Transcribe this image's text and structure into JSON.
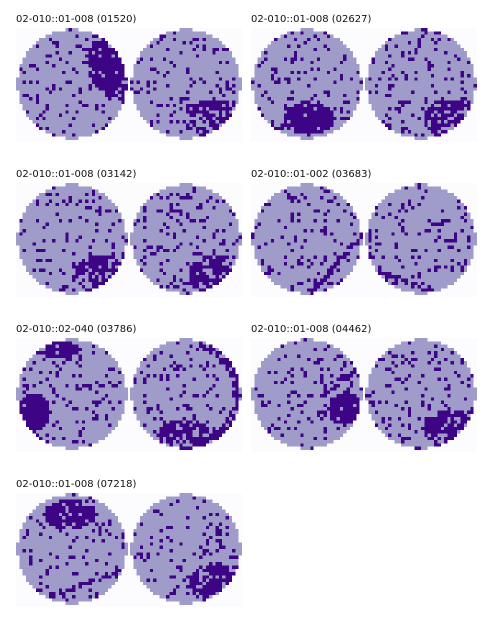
{
  "colors": {
    "die_pass": "#a09cc9",
    "die_fail": "#3d0585",
    "background": "#fcfcfe"
  },
  "panels": [
    {
      "title": "02-010::01-008 (01520)",
      "left_pattern": "edge-ring-cluster",
      "right_pattern": "bottom-right-cluster"
    },
    {
      "title": "02-010::01-008 (02627)",
      "left_pattern": "bottom-cluster",
      "right_pattern": "bottom-right-cluster"
    },
    {
      "title": "02-010::01-008 (03142)",
      "left_pattern": "bottom-right-cluster",
      "right_pattern": "bottom-right-cluster"
    },
    {
      "title": "02-010::01-002 (03683)",
      "left_pattern": "scratch",
      "right_pattern": "scratch-bottom"
    },
    {
      "title": "02-010::02-040 (03786)",
      "left_pattern": "left-edge-cluster",
      "right_pattern": "edge-ring-bottom"
    },
    {
      "title": "02-010::01-008 (04462)",
      "left_pattern": "right-cluster",
      "right_pattern": "bottom-right-cluster"
    },
    {
      "title": "02-010::01-008 (07218)",
      "left_pattern": "top-cluster-scratch",
      "right_pattern": "bottom-right-cluster"
    }
  ]
}
